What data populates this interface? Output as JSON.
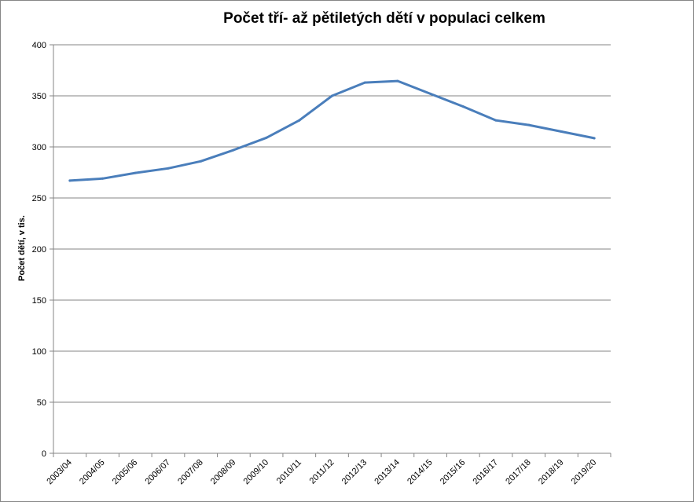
{
  "chart_data": {
    "type": "line",
    "title": "Počet tří- až pětiletých dětí v populaci celkem",
    "xlabel": "",
    "ylabel": "Počet dětí, v tis.",
    "categories": [
      "2003/04",
      "2004/05",
      "2005/06",
      "2006/07",
      "2007/08",
      "2008/09",
      "2009/10",
      "2010/11",
      "2011/12",
      "2012/13",
      "2013/14",
      "2014/15",
      "2015/16",
      "2016/17",
      "2017/18",
      "2018/19",
      "2019/20"
    ],
    "series": [
      {
        "values": [
          267,
          269,
          274.5,
          279,
          286,
          297,
          309,
          326,
          350,
          363,
          364.5,
          352,
          339.5,
          326,
          321.5,
          315,
          308.5
        ]
      }
    ],
    "ylim": [
      0,
      400
    ],
    "yticks": [
      0,
      50,
      100,
      150,
      200,
      250,
      300,
      350,
      400
    ],
    "grid": true,
    "legend": "none",
    "line_color": "#4a7ebb",
    "grid_color": "#868686"
  }
}
